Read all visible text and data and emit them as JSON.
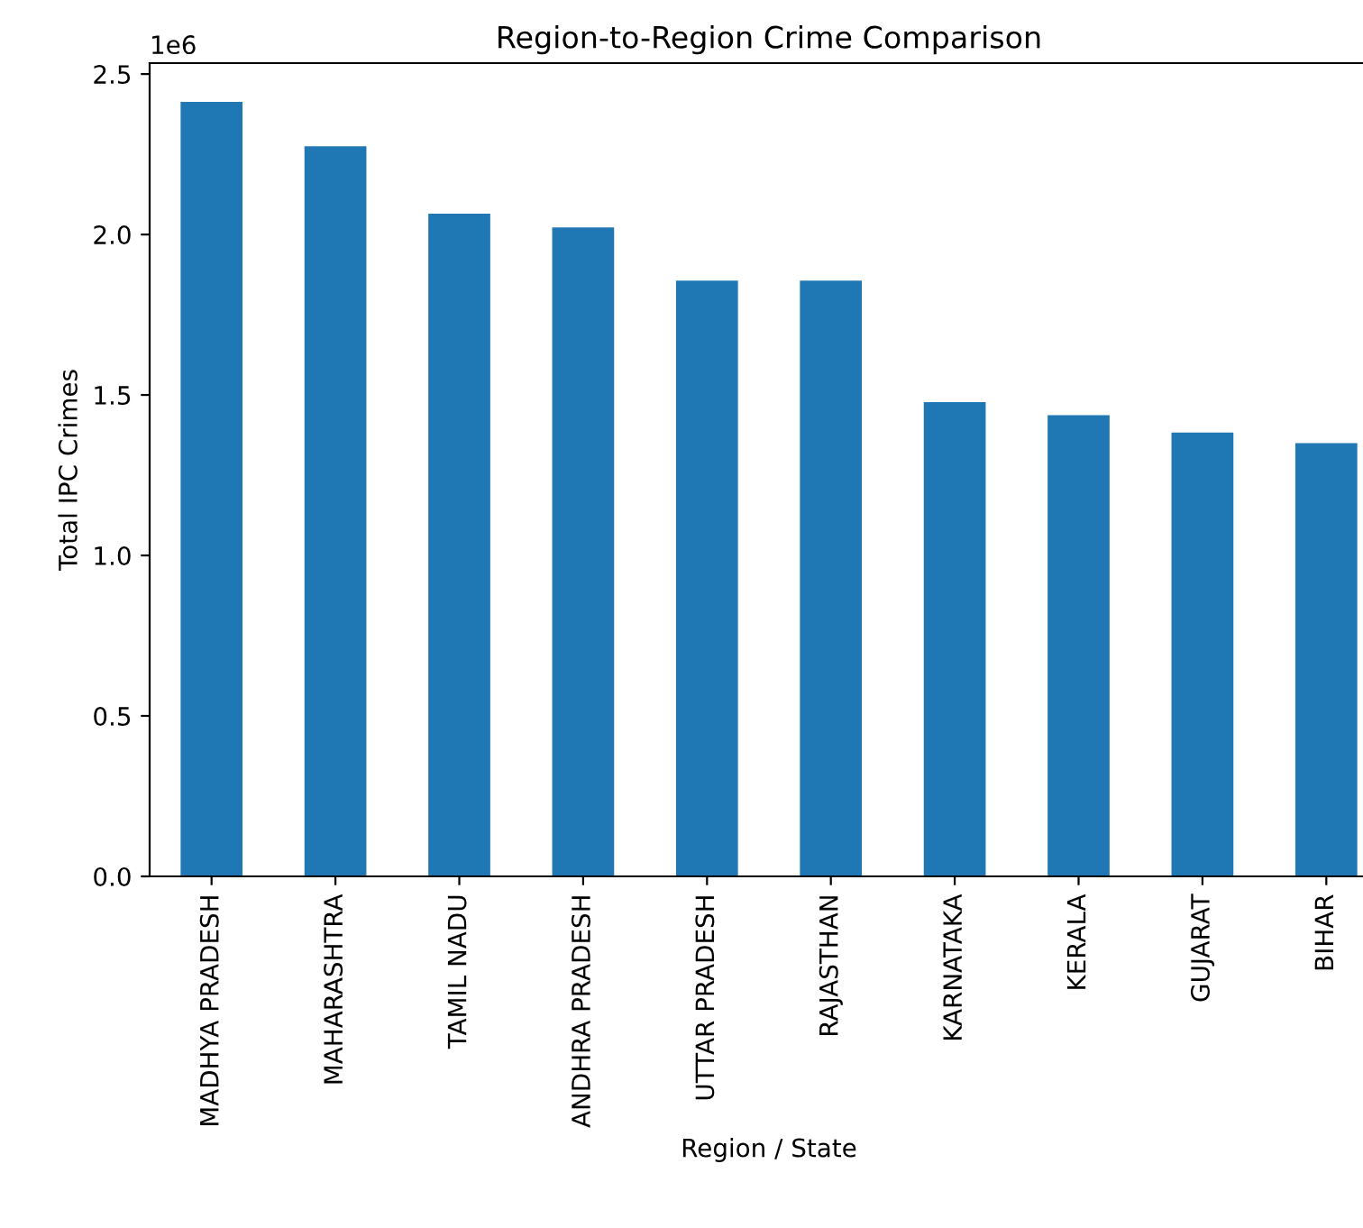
{
  "chart_data": {
    "type": "bar",
    "title": "Region-to-Region Crime Comparison",
    "xlabel": "Region / State",
    "ylabel": "Total IPC Crimes",
    "annotations": [
      "1e6"
    ],
    "categories": [
      "MADHYA PRADESH",
      "MAHARASHTRA",
      "TAMIL NADU",
      "ANDHRA PRADESH",
      "UTTAR PRADESH",
      "RAJASTHAN",
      "KARNATAKA",
      "KERALA",
      "GUJARAT",
      "BIHAR"
    ],
    "values": [
      2.413,
      2.275,
      2.065,
      2.022,
      1.856,
      1.856,
      1.478,
      1.437,
      1.383,
      1.35
    ],
    "color": "#1f77b4",
    "ylim": [
      0,
      2.534
    ],
    "yticks": [
      {
        "value": 0,
        "label": "0.0"
      },
      {
        "value": 0.5,
        "label": "0.5"
      },
      {
        "value": 1,
        "label": "1.0"
      },
      {
        "value": 1.5,
        "label": "1.5"
      },
      {
        "value": 2,
        "label": "2.0"
      },
      {
        "value": 2.5,
        "label": "2.5"
      }
    ],
    "grid": false,
    "legend": false
  }
}
